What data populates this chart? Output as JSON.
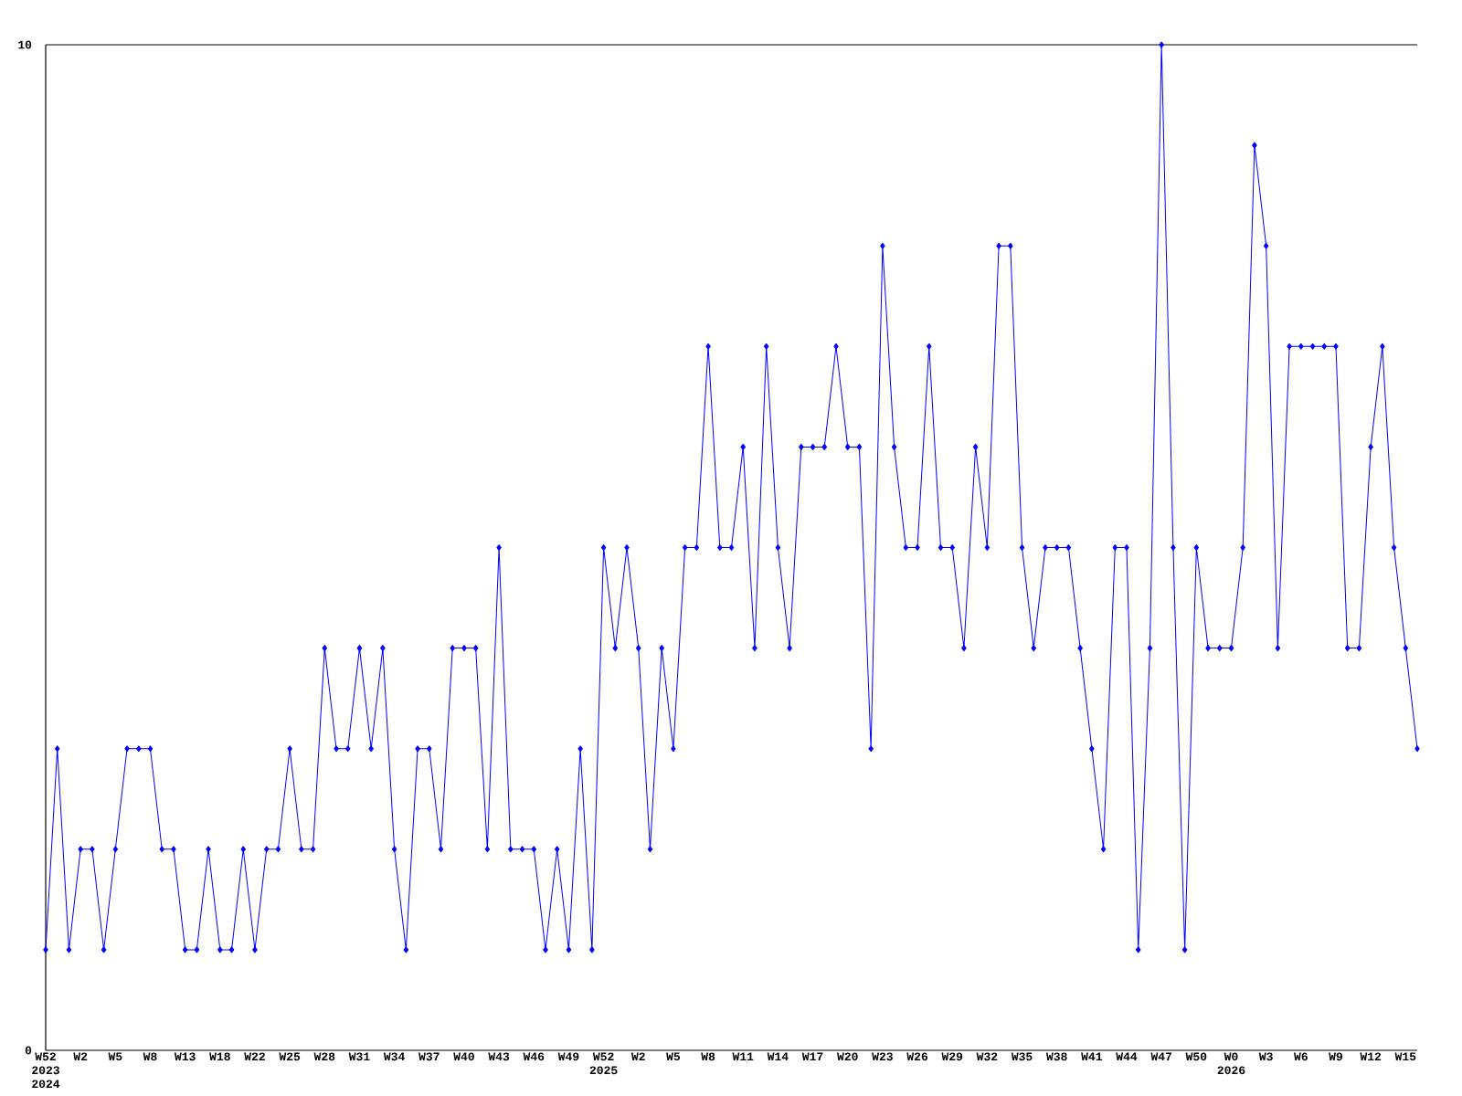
{
  "chart_data": {
    "type": "line",
    "categories": [
      "W52 2023 2024",
      null,
      null,
      "W2",
      null,
      null,
      "W5",
      null,
      null,
      "W8",
      null,
      null,
      "W13",
      null,
      null,
      "W18",
      null,
      null,
      "W22",
      null,
      null,
      "W25",
      null,
      null,
      "W28",
      null,
      null,
      "W31",
      null,
      null,
      "W34",
      null,
      null,
      "W37",
      null,
      null,
      "W40",
      null,
      null,
      "W43",
      null,
      null,
      "W46",
      null,
      null,
      "W49",
      null,
      null,
      "W52 2025",
      null,
      null,
      "W2",
      null,
      null,
      "W5",
      null,
      null,
      "W8",
      null,
      null,
      "W11",
      null,
      null,
      "W14",
      null,
      null,
      "W17",
      null,
      null,
      "W20",
      null,
      null,
      "W23",
      null,
      null,
      "W26",
      null,
      null,
      "W29",
      null,
      null,
      "W32",
      null,
      null,
      "W35",
      null,
      null,
      "W38",
      null,
      null,
      "W41",
      null,
      null,
      "W44",
      null,
      null,
      "W47",
      null,
      null,
      "W50",
      null,
      null,
      "W0 2026",
      null,
      null,
      "W3",
      null,
      null,
      "W6",
      null,
      null,
      "W9",
      null,
      null,
      "W12",
      null,
      null,
      "W15",
      null
    ],
    "values": [
      1,
      3,
      1,
      2,
      2,
      1,
      2,
      3,
      3,
      3,
      2,
      2,
      1,
      1,
      2,
      1,
      1,
      2,
      1,
      2,
      2,
      3,
      2,
      2,
      4,
      3,
      3,
      4,
      3,
      4,
      2,
      1,
      3,
      3,
      2,
      4,
      4,
      4,
      2,
      5,
      2,
      2,
      2,
      1,
      2,
      1,
      3,
      1,
      5,
      4,
      5,
      4,
      2,
      4,
      3,
      5,
      5,
      7,
      5,
      5,
      6,
      4,
      7,
      5,
      4,
      6,
      6,
      6,
      7,
      6,
      6,
      3,
      8,
      6,
      5,
      5,
      7,
      5,
      5,
      4,
      6,
      5,
      8,
      8,
      5,
      4,
      5,
      5,
      5,
      4,
      3,
      2,
      5,
      5,
      1,
      4,
      10,
      5,
      1,
      5,
      4,
      4,
      4,
      5,
      9,
      8,
      4,
      7,
      7,
      7,
      7,
      7,
      4,
      4,
      6,
      7,
      5,
      4,
      3
    ],
    "color": "#0000ff",
    "ylim": [
      0,
      10
    ],
    "yticks": [
      0,
      10
    ],
    "marker": "diamond",
    "line_style": "solid"
  }
}
